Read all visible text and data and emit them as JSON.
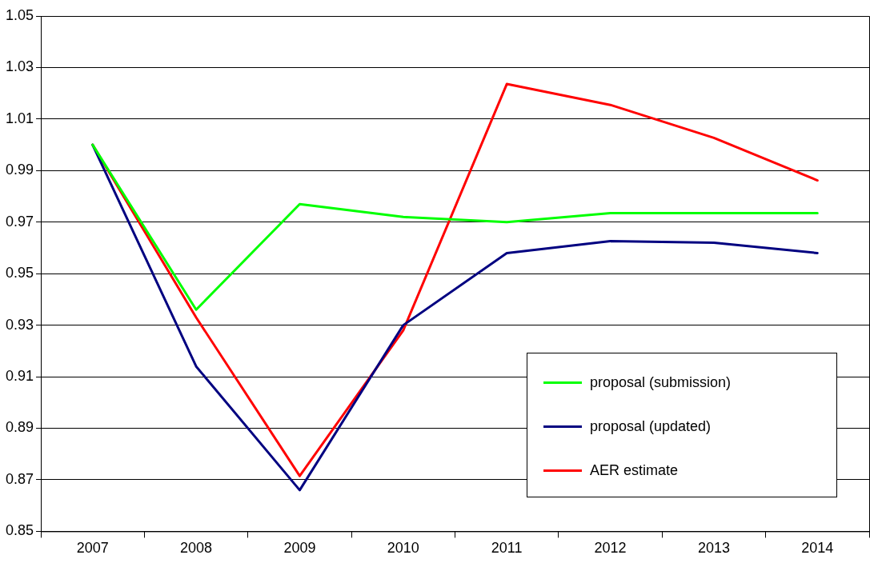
{
  "chart_data": {
    "type": "line",
    "categories": [
      "2007",
      "2008",
      "2009",
      "2010",
      "2011",
      "2012",
      "2013",
      "2014"
    ],
    "series": [
      {
        "name": "proposal (submission)",
        "color": "#00ff00",
        "values": [
          1.0,
          0.936,
          0.977,
          0.972,
          0.97,
          0.9735,
          0.9735,
          0.9735
        ]
      },
      {
        "name": "proposal (updated)",
        "color": "#000080",
        "values": [
          1.0,
          0.914,
          0.866,
          0.93,
          0.958,
          0.9626,
          0.962,
          0.958
        ]
      },
      {
        "name": "AER estimate",
        "color": "#ff0000",
        "values": [
          1.0,
          0.933,
          0.8715,
          0.928,
          1.0236,
          1.0155,
          1.0027,
          0.9862
        ]
      }
    ],
    "ylim": [
      0.85,
      1.05
    ],
    "yticks": [
      0.85,
      0.87,
      0.89,
      0.91,
      0.93,
      0.95,
      0.97,
      0.99,
      1.01,
      1.03,
      1.05
    ],
    "grid": "y",
    "legend": "bottom right",
    "marker": "none",
    "line_style": "solid"
  }
}
